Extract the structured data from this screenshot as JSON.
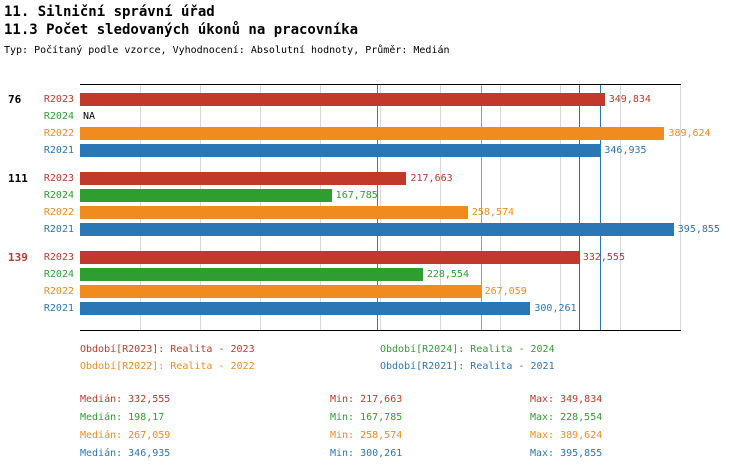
{
  "header": {
    "title_line1": "11. Silniční správní úřad",
    "title_line2": "11.3 Počet sledovaných úkonů na pracovníka",
    "meta": "Typ: Počítaný podle vzorce, Vyhodnocení: Absolutní hodnoty, Průměr: Medián"
  },
  "colors": {
    "red": "#c0392b",
    "green": "#2f9e31",
    "orange": "#f08c1e",
    "blue": "#2b76b4",
    "grid": "#d8d8d8",
    "axis": "#000000",
    "na_label": "#000000",
    "group_label_default": "#000000",
    "group_label_alert": "#c0392b"
  },
  "chart_data": {
    "type": "bar",
    "orientation": "horizontal",
    "value_format": "czech decimal comma",
    "xlim": [
      0,
      400
    ],
    "grid_step": 40,
    "series_order": [
      "R2023",
      "R2024",
      "R2022",
      "R2021"
    ],
    "groups": [
      {
        "label": "76",
        "label_color": "default",
        "bars": [
          {
            "series": "R2023",
            "color": "red",
            "value": 349.834,
            "display": "349,834"
          },
          {
            "series": "R2024",
            "color": "green",
            "value": null,
            "display": "NA"
          },
          {
            "series": "R2022",
            "color": "orange",
            "value": 389.624,
            "display": "389,624"
          },
          {
            "series": "R2021",
            "color": "blue",
            "value": 346.935,
            "display": "346,935"
          }
        ]
      },
      {
        "label": "111",
        "label_color": "default",
        "bars": [
          {
            "series": "R2023",
            "color": "red",
            "value": 217.663,
            "display": "217,663"
          },
          {
            "series": "R2024",
            "color": "green",
            "value": 167.785,
            "display": "167,785"
          },
          {
            "series": "R2022",
            "color": "orange",
            "value": 258.574,
            "display": "258,574"
          },
          {
            "series": "R2021",
            "color": "blue",
            "value": 395.855,
            "display": "395,855"
          }
        ]
      },
      {
        "label": "139",
        "label_color": "alert",
        "bars": [
          {
            "series": "R2023",
            "color": "red",
            "value": 332.555,
            "display": "332,555"
          },
          {
            "series": "R2024",
            "color": "green",
            "value": 228.554,
            "display": "228,554"
          },
          {
            "series": "R2022",
            "color": "orange",
            "value": 267.059,
            "display": "267,059"
          },
          {
            "series": "R2021",
            "color": "blue",
            "value": 300.261,
            "display": "300,261"
          }
        ]
      }
    ],
    "median_lines": [
      {
        "series": "R2023",
        "color": "red",
        "value": 332.555
      },
      {
        "series": "R2024",
        "color": "green",
        "value": 198.17
      },
      {
        "series": "R2022",
        "color": "orange",
        "value": 267.059
      },
      {
        "series": "R2021",
        "color": "blue",
        "value": 346.935
      }
    ],
    "legend": [
      {
        "series": "R2023",
        "color": "red",
        "text": "Období[R2023]: Realita - 2023"
      },
      {
        "series": "R2024",
        "color": "green",
        "text": "Období[R2024]: Realita - 2024"
      },
      {
        "series": "R2022",
        "color": "orange",
        "text": "Období[R2022]: Realita - 2022"
      },
      {
        "series": "R2021",
        "color": "blue",
        "text": "Období[R2021]: Realita - 2021"
      }
    ],
    "stats": {
      "labels": {
        "median": "Medián:",
        "min": "Min:",
        "max": "Max:"
      },
      "rows": [
        {
          "series": "R2023",
          "color": "red",
          "median": "332,555",
          "min": "217,663",
          "max": "349,834"
        },
        {
          "series": "R2024",
          "color": "green",
          "median": "198,17",
          "min": "167,785",
          "max": "228,554"
        },
        {
          "series": "R2022",
          "color": "orange",
          "median": "267,059",
          "min": "258,574",
          "max": "389,624"
        },
        {
          "series": "R2021",
          "color": "blue",
          "median": "346,935",
          "min": "300,261",
          "max": "395,855"
        }
      ]
    }
  }
}
